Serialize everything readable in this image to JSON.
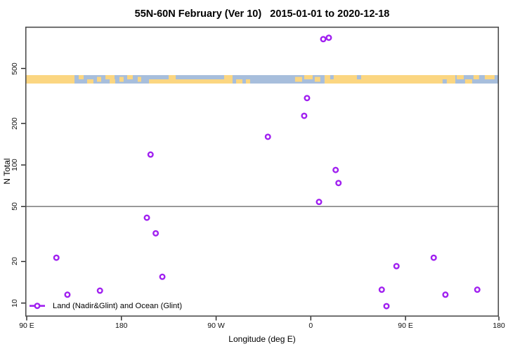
{
  "title": "55N-60N February (Ver 10)   2015-01-01 to 2020-12-18",
  "legend": {
    "label": "Land (Nadir&Glint) and Ocean (Glint)"
  },
  "colors": {
    "marker": "#A020F0",
    "land": "#FBD681",
    "ocean": "#A7BEDC",
    "box": "#4d4d4d",
    "reference_line": "#858585",
    "tick": "#222222"
  },
  "chart_data": {
    "type": "scatter",
    "title": "55N-60N February (Ver 10)   2015-01-01 to 2020-12-18",
    "xlabel": "Longitude (deg E)",
    "ylabel": "N Total",
    "x_axis": {
      "scale": "linear-wrapped-longitude",
      "range": [
        88,
        540
      ],
      "ticks": [
        {
          "value": 90,
          "label": "90 E"
        },
        {
          "value": 180,
          "label": "180"
        },
        {
          "value": 270,
          "label": "90 W"
        },
        {
          "value": 360,
          "label": "0"
        },
        {
          "value": 450,
          "label": "90 E"
        },
        {
          "value": 540,
          "label": "180"
        }
      ]
    },
    "y_axis": {
      "scale": "log",
      "range": [
        8,
        1000
      ],
      "ticks": [
        500,
        200,
        100,
        50,
        20,
        10
      ]
    },
    "reference_line_y": 50,
    "series": [
      {
        "name": "Land (Nadir&Glint) and Ocean (Glint)",
        "marker": "open-circle",
        "points": [
          {
            "lon": 371.8,
            "n": 815
          },
          {
            "lon": 377.1,
            "n": 835
          },
          {
            "lon": 356.4,
            "n": 305
          },
          {
            "lon": 353.7,
            "n": 227
          },
          {
            "lon": 319.2,
            "n": 160
          },
          {
            "lon": 207.7,
            "n": 119
          },
          {
            "lon": 383.6,
            "n": 92
          },
          {
            "lon": 386.3,
            "n": 74
          },
          {
            "lon": 367.8,
            "n": 54
          },
          {
            "lon": 204.2,
            "n": 41.5
          },
          {
            "lon": 212.6,
            "n": 32
          },
          {
            "lon": 118.2,
            "n": 21.3
          },
          {
            "lon": 476.8,
            "n": 21.3
          },
          {
            "lon": 441.4,
            "n": 18.5
          },
          {
            "lon": 218.9,
            "n": 15.5
          },
          {
            "lon": 427.4,
            "n": 12.5
          },
          {
            "lon": 518.2,
            "n": 12.5
          },
          {
            "lon": 159.6,
            "n": 12.3
          },
          {
            "lon": 128.7,
            "n": 11.5
          },
          {
            "lon": 487.9,
            "n": 11.5
          },
          {
            "lon": 431.9,
            "n": 9.5
          }
        ]
      }
    ],
    "map_strip": {
      "description": "world coastline band for 55N-60N drawn across plot, N range approx 390-450",
      "n_top": 450,
      "n_bottom": 390,
      "base_segments": [
        {
          "lon": 88.7,
          "w": 46.7,
          "c": "land"
        },
        {
          "lon": 135.4,
          "w": 237.7,
          "c": "ocean"
        },
        {
          "lon": 373.1,
          "w": 124.2,
          "c": "land"
        },
        {
          "lon": 497.3,
          "w": 41.4,
          "c": "ocean"
        }
      ],
      "patches": [
        {
          "lon": 139.4,
          "w": 4.7,
          "c": "land",
          "p": "top"
        },
        {
          "lon": 147.4,
          "w": 6.0,
          "c": "land",
          "p": "bottom"
        },
        {
          "lon": 156.8,
          "w": 4.0,
          "c": "land",
          "p": "mid"
        },
        {
          "lon": 164.8,
          "w": 8.7,
          "c": "land",
          "p": "top"
        },
        {
          "lon": 168.8,
          "w": 5.3,
          "c": "land",
          "p": "bottom"
        },
        {
          "lon": 178.1,
          "w": 4.0,
          "c": "land",
          "p": "mid"
        },
        {
          "lon": 185.5,
          "w": 5.3,
          "c": "land",
          "p": "top"
        },
        {
          "lon": 195.5,
          "w": 3.3,
          "c": "land",
          "p": "mid"
        },
        {
          "lon": 206.2,
          "w": 72.1,
          "c": "land",
          "p": "bottom"
        },
        {
          "lon": 224.9,
          "w": 6.7,
          "c": "land",
          "p": "top"
        },
        {
          "lon": 277.6,
          "w": 8.0,
          "c": "land",
          "p": "full"
        },
        {
          "lon": 289.0,
          "w": 6.0,
          "c": "land",
          "p": "bottom"
        },
        {
          "lon": 298.3,
          "w": 4.0,
          "c": "land",
          "p": "bottom"
        },
        {
          "lon": 345.0,
          "w": 6.7,
          "c": "land",
          "p": "mid"
        },
        {
          "lon": 353.7,
          "w": 8.0,
          "c": "land",
          "p": "top"
        },
        {
          "lon": 363.7,
          "w": 5.3,
          "c": "land",
          "p": "mid"
        },
        {
          "lon": 378.4,
          "w": 3.3,
          "c": "ocean",
          "p": "top"
        },
        {
          "lon": 403.8,
          "w": 4.0,
          "c": "ocean",
          "p": "top"
        },
        {
          "lon": 485.2,
          "w": 4.0,
          "c": "ocean",
          "p": "bottom"
        },
        {
          "lon": 498.6,
          "w": 6.7,
          "c": "land",
          "p": "top"
        },
        {
          "lon": 506.6,
          "w": 6.7,
          "c": "land",
          "p": "bottom"
        },
        {
          "lon": 514.6,
          "w": 5.3,
          "c": "land",
          "p": "top"
        },
        {
          "lon": 525.3,
          "w": 9.3,
          "c": "land",
          "p": "top"
        }
      ]
    }
  }
}
